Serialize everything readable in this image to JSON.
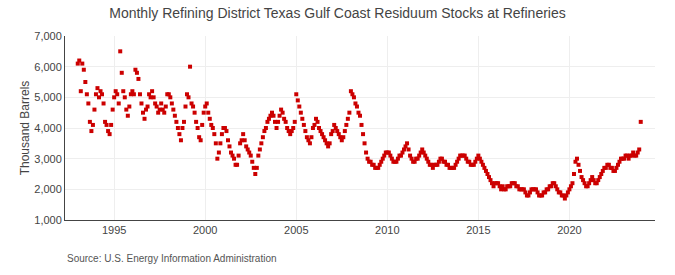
{
  "chart_data": {
    "type": "scatter",
    "title": "Monthly Refining District Texas Gulf Coast Residuum Stocks at Refineries",
    "ylabel": "Thousand Barrels",
    "annotations": [
      "Source: U.S. Energy Information Administration"
    ],
    "color": "#cc0000",
    "marker": "square",
    "grid": true,
    "xlim": [
      1992.3,
      2024.7
    ],
    "xticks": [
      1995,
      2000,
      2005,
      2010,
      2015,
      2020
    ],
    "ylim": [
      1000,
      7000
    ],
    "yticks": [
      {
        "value": 1000,
        "label": "1,000"
      },
      {
        "value": 2000,
        "label": "2,000"
      },
      {
        "value": 3000,
        "label": "3,000"
      },
      {
        "value": 4000,
        "label": "4,000"
      },
      {
        "value": 5000,
        "label": "5,000"
      },
      {
        "value": 6000,
        "label": "6,000"
      },
      {
        "value": 7000,
        "label": "7,000"
      }
    ],
    "x": [
      1993.0,
      1993.083,
      1993.167,
      1993.25,
      1993.333,
      1993.417,
      1993.5,
      1993.583,
      1993.667,
      1993.75,
      1993.833,
      1993.917,
      1994.0,
      1994.083,
      1994.167,
      1994.25,
      1994.333,
      1994.417,
      1994.5,
      1994.583,
      1994.667,
      1994.75,
      1994.833,
      1994.917,
      1995.0,
      1995.083,
      1995.167,
      1995.25,
      1995.333,
      1995.417,
      1995.5,
      1995.583,
      1995.667,
      1995.75,
      1995.833,
      1995.917,
      1996.0,
      1996.083,
      1996.167,
      1996.25,
      1996.333,
      1996.417,
      1996.5,
      1996.583,
      1996.667,
      1996.75,
      1996.833,
      1996.917,
      1997.0,
      1997.083,
      1997.167,
      1997.25,
      1997.333,
      1997.417,
      1997.5,
      1997.583,
      1997.667,
      1997.75,
      1997.833,
      1997.917,
      1998.0,
      1998.083,
      1998.167,
      1998.25,
      1998.333,
      1998.417,
      1998.5,
      1998.583,
      1998.667,
      1998.75,
      1998.833,
      1998.917,
      1999.0,
      1999.083,
      1999.167,
      1999.25,
      1999.333,
      1999.417,
      1999.5,
      1999.583,
      1999.667,
      1999.75,
      1999.833,
      1999.917,
      2000.0,
      2000.083,
      2000.167,
      2000.25,
      2000.333,
      2000.417,
      2000.5,
      2000.583,
      2000.667,
      2000.75,
      2000.833,
      2000.917,
      2001.0,
      2001.083,
      2001.167,
      2001.25,
      2001.333,
      2001.417,
      2001.5,
      2001.583,
      2001.667,
      2001.75,
      2001.833,
      2001.917,
      2002.0,
      2002.083,
      2002.167,
      2002.25,
      2002.333,
      2002.417,
      2002.5,
      2002.583,
      2002.667,
      2002.75,
      2002.833,
      2002.917,
      2003.0,
      2003.083,
      2003.167,
      2003.25,
      2003.333,
      2003.417,
      2003.5,
      2003.583,
      2003.667,
      2003.75,
      2003.833,
      2003.917,
      2004.0,
      2004.083,
      2004.167,
      2004.25,
      2004.333,
      2004.417,
      2004.5,
      2004.583,
      2004.667,
      2004.75,
      2004.833,
      2004.917,
      2005.0,
      2005.083,
      2005.167,
      2005.25,
      2005.333,
      2005.417,
      2005.5,
      2005.583,
      2005.667,
      2005.75,
      2005.833,
      2005.917,
      2006.0,
      2006.083,
      2006.167,
      2006.25,
      2006.333,
      2006.417,
      2006.5,
      2006.583,
      2006.667,
      2006.75,
      2006.833,
      2006.917,
      2007.0,
      2007.083,
      2007.167,
      2007.25,
      2007.333,
      2007.417,
      2007.5,
      2007.583,
      2007.667,
      2007.75,
      2007.833,
      2007.917,
      2008.0,
      2008.083,
      2008.167,
      2008.25,
      2008.333,
      2008.417,
      2008.5,
      2008.583,
      2008.667,
      2008.75,
      2008.833,
      2008.917,
      2009.0,
      2009.083,
      2009.167,
      2009.25,
      2009.333,
      2009.417,
      2009.5,
      2009.583,
      2009.667,
      2009.75,
      2009.833,
      2009.917,
      2010.0,
      2010.083,
      2010.167,
      2010.25,
      2010.333,
      2010.417,
      2010.5,
      2010.583,
      2010.667,
      2010.75,
      2010.833,
      2010.917,
      2011.0,
      2011.083,
      2011.167,
      2011.25,
      2011.333,
      2011.417,
      2011.5,
      2011.583,
      2011.667,
      2011.75,
      2011.833,
      2011.917,
      2012.0,
      2012.083,
      2012.167,
      2012.25,
      2012.333,
      2012.417,
      2012.5,
      2012.583,
      2012.667,
      2012.75,
      2012.833,
      2012.917,
      2013.0,
      2013.083,
      2013.167,
      2013.25,
      2013.333,
      2013.417,
      2013.5,
      2013.583,
      2013.667,
      2013.75,
      2013.833,
      2013.917,
      2014.0,
      2014.083,
      2014.167,
      2014.25,
      2014.333,
      2014.417,
      2014.5,
      2014.583,
      2014.667,
      2014.75,
      2014.833,
      2014.917,
      2015.0,
      2015.083,
      2015.167,
      2015.25,
      2015.333,
      2015.417,
      2015.5,
      2015.583,
      2015.667,
      2015.75,
      2015.833,
      2015.917,
      2016.0,
      2016.083,
      2016.167,
      2016.25,
      2016.333,
      2016.417,
      2016.5,
      2016.583,
      2016.667,
      2016.75,
      2016.833,
      2016.917,
      2017.0,
      2017.083,
      2017.167,
      2017.25,
      2017.333,
      2017.417,
      2017.5,
      2017.583,
      2017.667,
      2017.75,
      2017.833,
      2017.917,
      2018.0,
      2018.083,
      2018.167,
      2018.25,
      2018.333,
      2018.417,
      2018.5,
      2018.583,
      2018.667,
      2018.75,
      2018.833,
      2018.917,
      2019.0,
      2019.083,
      2019.167,
      2019.25,
      2019.333,
      2019.417,
      2019.5,
      2019.583,
      2019.667,
      2019.75,
      2019.833,
      2019.917,
      2020.0,
      2020.083,
      2020.167,
      2020.25,
      2020.333,
      2020.417,
      2020.5,
      2020.583,
      2020.667,
      2020.75,
      2020.833,
      2020.917,
      2021.0,
      2021.083,
      2021.167,
      2021.25,
      2021.333,
      2021.417,
      2021.5,
      2021.583,
      2021.667,
      2021.75,
      2021.833,
      2021.917,
      2022.0,
      2022.083,
      2022.167,
      2022.25,
      2022.333,
      2022.417,
      2022.5,
      2022.583,
      2022.667,
      2022.75,
      2022.833,
      2022.917,
      2023.0,
      2023.083,
      2023.167,
      2023.25,
      2023.333,
      2023.417,
      2023.5,
      2023.583,
      2023.667,
      2023.75,
      2023.833,
      2023.917
    ],
    "values": [
      6100,
      6200,
      5200,
      6100,
      5900,
      5500,
      5100,
      4800,
      4200,
      3900,
      4100,
      4600,
      5100,
      5300,
      5000,
      5200,
      5100,
      4800,
      4200,
      4100,
      3900,
      3800,
      4100,
      4600,
      5000,
      5200,
      5100,
      4800,
      6500,
      5800,
      5200,
      5000,
      4600,
      4400,
      4700,
      5100,
      5200,
      5100,
      5900,
      5800,
      5600,
      5100,
      4800,
      4500,
      4300,
      4600,
      4700,
      5100,
      5000,
      5200,
      5000,
      4800,
      4700,
      4500,
      4600,
      4800,
      4600,
      4500,
      4700,
      5100,
      5100,
      5000,
      4800,
      4600,
      4400,
      4200,
      4000,
      3800,
      3600,
      4000,
      4200,
      4700,
      5100,
      5000,
      6000,
      4800,
      4700,
      4500,
      4200,
      4000,
      3700,
      3600,
      4100,
      4500,
      4700,
      4800,
      4500,
      4300,
      4100,
      4000,
      3800,
      3500,
      3000,
      3200,
      3500,
      3800,
      4000,
      4000,
      3900,
      3600,
      3400,
      3200,
      3100,
      3000,
      2800,
      2800,
      3100,
      3500,
      3600,
      3800,
      3600,
      3400,
      3300,
      3200,
      3100,
      2900,
      2700,
      2500,
      2700,
      3100,
      3300,
      3500,
      3700,
      3900,
      4000,
      4200,
      4300,
      4400,
      4500,
      4400,
      4200,
      4000,
      4200,
      4400,
      4600,
      4500,
      4300,
      4200,
      4000,
      3900,
      3800,
      3900,
      4000,
      4200,
      5100,
      4900,
      4700,
      4500,
      4300,
      4100,
      3900,
      3700,
      3600,
      3500,
      3700,
      4000,
      4100,
      4300,
      4200,
      4000,
      3900,
      3800,
      3700,
      3600,
      3500,
      3400,
      3500,
      3800,
      3900,
      4100,
      4000,
      3900,
      3800,
      3700,
      3600,
      3700,
      3900,
      4100,
      4300,
      4500,
      5200,
      5100,
      5000,
      4800,
      4700,
      4500,
      4400,
      4100,
      3800,
      3500,
      3200,
      3000,
      2900,
      2900,
      2800,
      2800,
      2700,
      2700,
      2700,
      2800,
      2900,
      3000,
      3100,
      3200,
      3200,
      3200,
      3100,
      3000,
      2900,
      2900,
      2900,
      3000,
      3100,
      3100,
      3200,
      3300,
      3400,
      3500,
      3300,
      3100,
      3000,
      2900,
      2900,
      3000,
      3000,
      3100,
      3200,
      3300,
      3200,
      3100,
      3000,
      2900,
      2800,
      2800,
      2700,
      2800,
      2800,
      2800,
      2900,
      3000,
      3000,
      2900,
      2900,
      2800,
      2800,
      2700,
      2700,
      2700,
      2700,
      2800,
      2900,
      3000,
      3100,
      3100,
      3100,
      3100,
      3000,
      2900,
      2900,
      2800,
      2800,
      2800,
      2900,
      3000,
      3100,
      3000,
      2900,
      2800,
      2700,
      2600,
      2500,
      2400,
      2300,
      2200,
      2100,
      2200,
      2200,
      2200,
      2100,
      2000,
      2100,
      2000,
      2000,
      2100,
      2100,
      2100,
      2200,
      2200,
      2200,
      2100,
      2100,
      2000,
      2000,
      2000,
      2000,
      1900,
      1800,
      1800,
      1900,
      2000,
      2000,
      2000,
      2000,
      1900,
      1800,
      1800,
      1800,
      1900,
      1900,
      2000,
      2000,
      2100,
      2100,
      2200,
      2200,
      2100,
      2000,
      1900,
      1900,
      1800,
      1800,
      1700,
      1800,
      1900,
      2000,
      2100,
      2200,
      2500,
      2900,
      3000,
      2800,
      2600,
      2400,
      2300,
      2200,
      2100,
      2100,
      2200,
      2300,
      2400,
      2300,
      2200,
      2200,
      2300,
      2400,
      2500,
      2600,
      2700,
      2700,
      2800,
      2800,
      2700,
      2700,
      2600,
      2600,
      2700,
      2800,
      2900,
      3000,
      3000,
      3000,
      3100,
      3100,
      3000,
      3100,
      3100,
      3200,
      3100,
      3100,
      3200,
      3300,
      4200
    ]
  }
}
